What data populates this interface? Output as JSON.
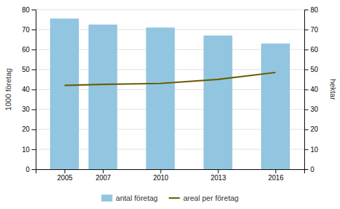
{
  "chart_data": {
    "type": "bar",
    "x": [
      2005,
      2007,
      2010,
      2013,
      2016
    ],
    "xlim": [
      2003.5,
      2017.5
    ],
    "xticks": [
      2005,
      2007,
      2010,
      2013,
      2016
    ],
    "ylabel": "1000 företag",
    "y2label": "hektar",
    "ylim": [
      0,
      80
    ],
    "yticks": [
      0,
      10,
      20,
      30,
      40,
      50,
      60,
      70,
      80
    ],
    "y2lim": [
      0,
      80
    ],
    "y2ticks": [
      0,
      10,
      20,
      30,
      40,
      50,
      60,
      70,
      80
    ],
    "grid": true,
    "legend": "bottom",
    "series": [
      {
        "name": "antal företag",
        "type": "bar",
        "color": "#92C5E0",
        "values": [
          75.5,
          72.5,
          71.0,
          67.0,
          63.0
        ]
      },
      {
        "name": "areal per företag",
        "type": "line",
        "color": "#6B5B00",
        "axis": "y2",
        "values": [
          42.0,
          42.5,
          43.0,
          45.0,
          48.5
        ]
      }
    ]
  }
}
